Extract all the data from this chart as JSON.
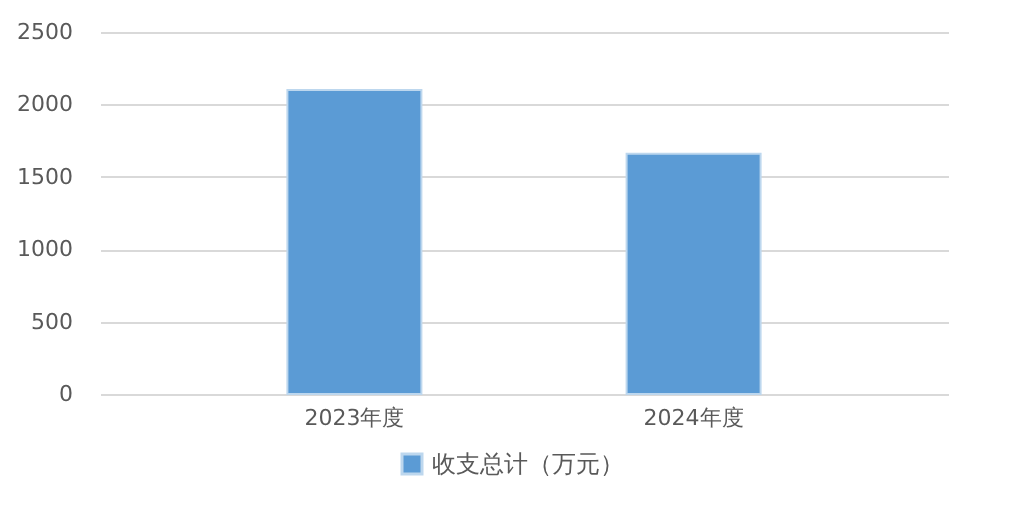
{
  "chart_data": {
    "type": "bar",
    "categories": [
      "2023年度",
      "2024年度"
    ],
    "series": [
      {
        "name": "收支总计（万元）",
        "color": "#5b9bd5",
        "values": [
          2100,
          1660
        ]
      }
    ],
    "ylim": [
      0,
      2500
    ],
    "yticks": [
      0,
      500,
      1000,
      1500,
      2000,
      2500
    ],
    "grid": "y",
    "legend": "bottom"
  }
}
